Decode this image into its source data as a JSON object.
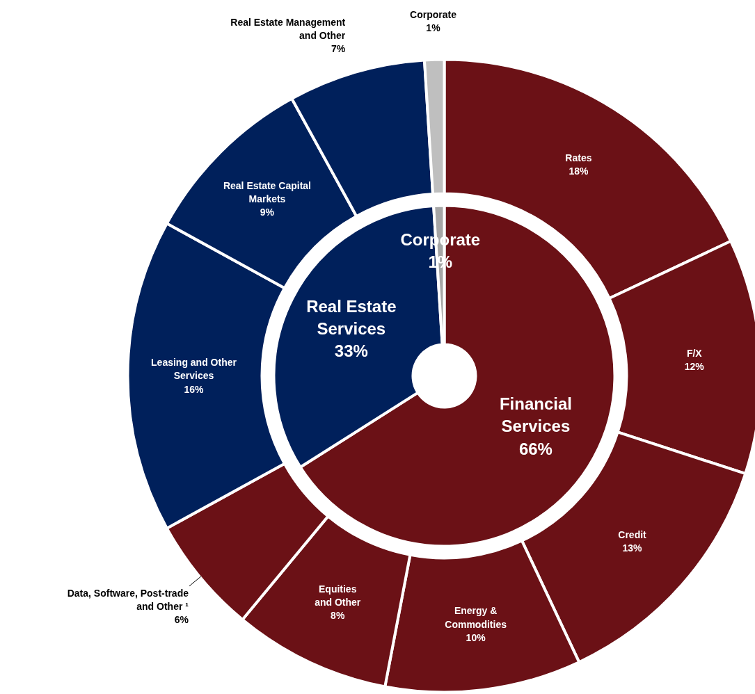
{
  "chart_data": [
    {
      "type": "donut",
      "categories": [
        "Financial\nServices",
        "Real Estate\nServices",
        "Corporate"
      ],
      "values": [
        66,
        33,
        1
      ],
      "value_labels": [
        "66%",
        "33%",
        "1%"
      ],
      "colors": [
        "#6b1116",
        "#00205b",
        "#a6a6a6"
      ]
    },
    {
      "type": "donut",
      "categories": [
        "Rates",
        "F/X",
        "Credit",
        "Energy &\nCommodities",
        "Equities\nand Other",
        "Data, Software, Post-trade\nand Other ¹",
        "Leasing and Other\nServices",
        "Real Estate Capital\nMarkets",
        "Real Estate Management\nand Other",
        "Corporate"
      ],
      "values": [
        18,
        12,
        13,
        10,
        8,
        6,
        16,
        9,
        7,
        1
      ],
      "value_labels": [
        "18%",
        "12%",
        "13%",
        "10%",
        "8%",
        "6%",
        "16%",
        "9%",
        "7%",
        "1%"
      ],
      "colors": [
        "#6b1116",
        "#6b1116",
        "#6b1116",
        "#6b1116",
        "#6b1116",
        "#6b1116",
        "#00205b",
        "#00205b",
        "#00205b",
        "#bfbfbf"
      ]
    }
  ]
}
